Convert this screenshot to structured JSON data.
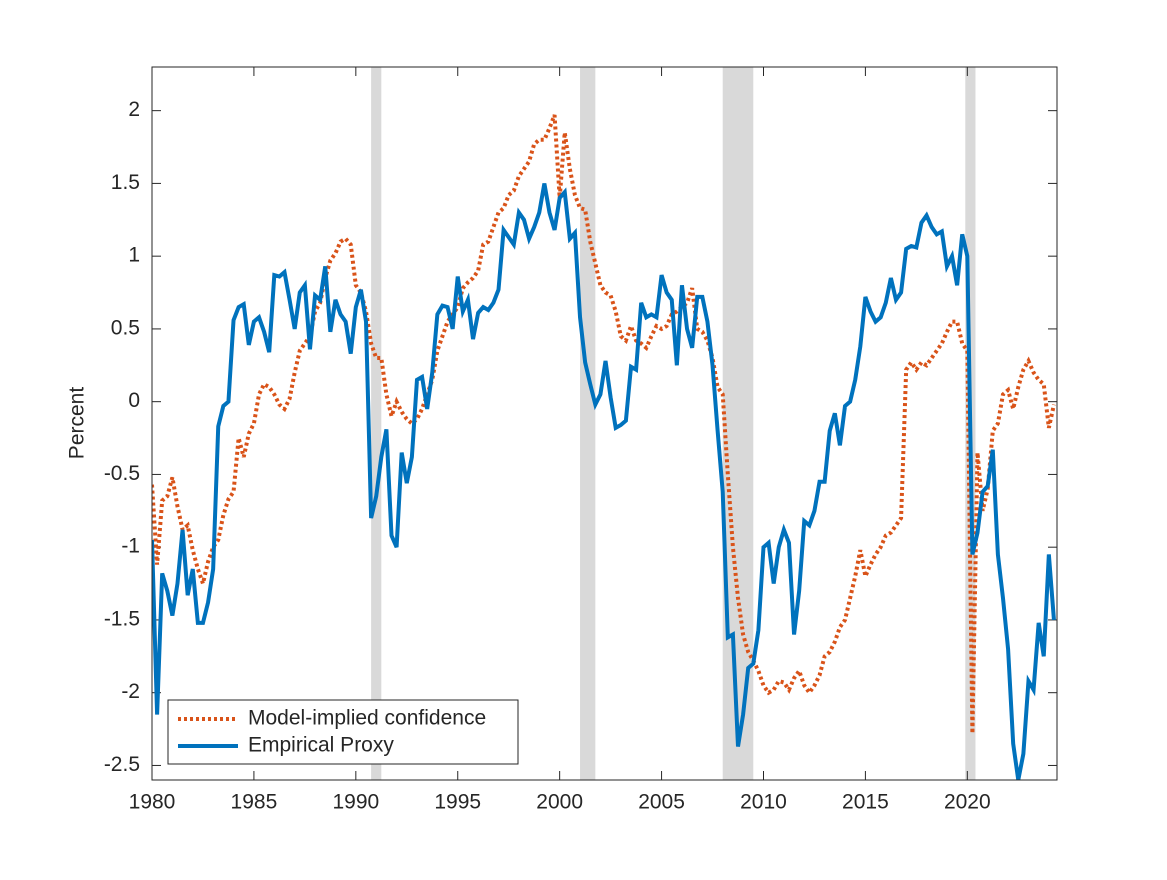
{
  "chart_data": {
    "type": "line",
    "y_label": "Percent",
    "x": [
      1980,
      1980.25,
      1980.5,
      1980.75,
      1981,
      1981.25,
      1981.5,
      1981.75,
      1982,
      1982.25,
      1982.5,
      1982.75,
      1983,
      1983.25,
      1983.5,
      1983.75,
      1984,
      1984.25,
      1984.5,
      1984.75,
      1985,
      1985.25,
      1985.5,
      1985.75,
      1986,
      1986.25,
      1986.5,
      1986.75,
      1987,
      1987.25,
      1987.5,
      1987.75,
      1988,
      1988.25,
      1988.5,
      1988.75,
      1989,
      1989.25,
      1989.5,
      1989.75,
      1990,
      1990.25,
      1990.5,
      1990.75,
      1991,
      1991.25,
      1991.5,
      1991.75,
      1992,
      1992.25,
      1992.5,
      1992.75,
      1993,
      1993.25,
      1993.5,
      1993.75,
      1994,
      1994.25,
      1994.5,
      1994.75,
      1995,
      1995.25,
      1995.5,
      1995.75,
      1996,
      1996.25,
      1996.5,
      1996.75,
      1997,
      1997.25,
      1997.5,
      1997.75,
      1998,
      1998.25,
      1998.5,
      1998.75,
      1999,
      1999.25,
      1999.5,
      1999.75,
      2000,
      2000.25,
      2000.5,
      2000.75,
      2001,
      2001.25,
      2001.5,
      2001.75,
      2002,
      2002.25,
      2002.5,
      2002.75,
      2003,
      2003.25,
      2003.5,
      2003.75,
      2004,
      2004.25,
      2004.5,
      2004.75,
      2005,
      2005.25,
      2005.5,
      2005.75,
      2006,
      2006.25,
      2006.5,
      2006.75,
      2007,
      2007.25,
      2007.5,
      2007.75,
      2008,
      2008.25,
      2008.5,
      2008.75,
      2009,
      2009.25,
      2009.5,
      2009.75,
      2010,
      2010.25,
      2010.5,
      2010.75,
      2011,
      2011.25,
      2011.5,
      2011.75,
      2012,
      2012.25,
      2012.5,
      2012.75,
      2013,
      2013.25,
      2013.5,
      2013.75,
      2014,
      2014.25,
      2014.5,
      2014.75,
      2015,
      2015.25,
      2015.5,
      2015.75,
      2016,
      2016.25,
      2016.5,
      2016.75,
      2017,
      2017.25,
      2017.5,
      2017.75,
      2018,
      2018.25,
      2018.5,
      2018.75,
      2019,
      2019.25,
      2019.5,
      2019.75,
      2020,
      2020.25,
      2020.5,
      2020.75,
      2021,
      2021.25,
      2021.5,
      2021.75,
      2022,
      2022.25,
      2022.5,
      2022.75,
      2023,
      2023.25,
      2023.5,
      2023.75,
      2024,
      2024.25
    ],
    "series": [
      {
        "name": "Model-implied confidence",
        "color": "#d95319",
        "style": "dotted",
        "values": [
          -0.57,
          -1.12,
          -0.68,
          -0.65,
          -0.52,
          -0.72,
          -0.88,
          -0.85,
          -1.02,
          -1.15,
          -1.25,
          -1.1,
          -1.0,
          -0.95,
          -0.78,
          -0.67,
          -0.62,
          -0.25,
          -0.38,
          -0.22,
          -0.15,
          0.05,
          0.12,
          0.1,
          0.05,
          -0.02,
          -0.05,
          0.02,
          0.2,
          0.35,
          0.4,
          0.45,
          0.62,
          0.68,
          0.85,
          0.97,
          1.02,
          1.1,
          1.12,
          1.08,
          0.8,
          0.75,
          0.62,
          0.4,
          0.3,
          0.3,
          0.05,
          -0.1,
          0.0,
          -0.07,
          -0.12,
          -0.15,
          -0.12,
          -0.05,
          0.05,
          0.15,
          0.35,
          0.45,
          0.55,
          0.6,
          0.65,
          0.78,
          0.82,
          0.85,
          0.9,
          1.08,
          1.1,
          1.2,
          1.3,
          1.33,
          1.42,
          1.45,
          1.55,
          1.6,
          1.65,
          1.77,
          1.8,
          1.8,
          1.88,
          1.97,
          1.4,
          1.85,
          1.6,
          1.42,
          1.33,
          1.32,
          1.1,
          0.95,
          0.8,
          0.75,
          0.73,
          0.62,
          0.45,
          0.42,
          0.52,
          0.42,
          0.4,
          0.37,
          0.45,
          0.52,
          0.5,
          0.52,
          0.6,
          0.62,
          0.65,
          0.68,
          0.78,
          0.5,
          0.48,
          0.42,
          0.3,
          0.1,
          0.05,
          -0.5,
          -1.0,
          -1.35,
          -1.6,
          -1.72,
          -1.78,
          -1.85,
          -1.95,
          -2.0,
          -1.98,
          -1.92,
          -1.93,
          -1.98,
          -1.9,
          -1.85,
          -1.95,
          -2.0,
          -1.95,
          -1.88,
          -1.75,
          -1.72,
          -1.65,
          -1.55,
          -1.5,
          -1.35,
          -1.2,
          -1.02,
          -1.2,
          -1.12,
          -1.05,
          -1.0,
          -0.92,
          -0.9,
          -0.85,
          -0.8,
          0.22,
          0.27,
          0.22,
          0.27,
          0.25,
          0.3,
          0.35,
          0.4,
          0.48,
          0.55,
          0.55,
          0.4,
          0.35,
          -2.28,
          -0.35,
          -0.75,
          -0.6,
          -0.2,
          -0.15,
          0.05,
          0.08,
          -0.05,
          0.1,
          0.22,
          0.28,
          0.2,
          0.15,
          0.12,
          -0.18,
          -0.02
        ]
      },
      {
        "name": "Empirical Proxy",
        "color": "#0072bd",
        "style": "solid",
        "values": [
          -0.95,
          -2.15,
          -1.18,
          -1.3,
          -1.47,
          -1.25,
          -0.88,
          -1.33,
          -1.15,
          -1.52,
          -1.52,
          -1.38,
          -1.15,
          -0.17,
          -0.03,
          0.0,
          0.56,
          0.65,
          0.67,
          0.39,
          0.55,
          0.58,
          0.48,
          0.34,
          0.87,
          0.86,
          0.89,
          0.7,
          0.5,
          0.75,
          0.8,
          0.36,
          0.73,
          0.7,
          0.93,
          0.48,
          0.7,
          0.6,
          0.55,
          0.33,
          0.65,
          0.77,
          0.55,
          -0.8,
          -0.65,
          -0.38,
          -0.19,
          -0.92,
          -1.0,
          -0.35,
          -0.56,
          -0.38,
          0.15,
          0.17,
          -0.05,
          0.2,
          0.6,
          0.66,
          0.65,
          0.5,
          0.86,
          0.62,
          0.7,
          0.43,
          0.61,
          0.65,
          0.63,
          0.68,
          0.77,
          1.18,
          1.13,
          1.08,
          1.3,
          1.25,
          1.12,
          1.2,
          1.3,
          1.5,
          1.3,
          1.18,
          1.4,
          1.44,
          1.12,
          1.16,
          0.58,
          0.27,
          0.12,
          -0.02,
          0.05,
          0.28,
          0.03,
          -0.18,
          -0.16,
          -0.13,
          0.24,
          0.22,
          0.68,
          0.58,
          0.6,
          0.58,
          0.87,
          0.75,
          0.7,
          0.25,
          0.8,
          0.5,
          0.37,
          0.72,
          0.72,
          0.55,
          0.25,
          -0.2,
          -0.62,
          -1.62,
          -1.6,
          -2.37,
          -2.15,
          -1.83,
          -1.8,
          -1.57,
          -1.0,
          -0.97,
          -1.25,
          -1.0,
          -0.88,
          -0.97,
          -1.6,
          -1.3,
          -0.82,
          -0.85,
          -0.75,
          -0.55,
          -0.55,
          -0.2,
          -0.08,
          -0.3,
          -0.03,
          0.0,
          0.15,
          0.38,
          0.72,
          0.62,
          0.55,
          0.58,
          0.68,
          0.85,
          0.7,
          0.75,
          1.05,
          1.07,
          1.06,
          1.23,
          1.28,
          1.2,
          1.15,
          1.17,
          0.93,
          1.0,
          0.8,
          1.15,
          1.0,
          -1.05,
          -0.9,
          -0.62,
          -0.58,
          -0.33,
          -1.05,
          -1.35,
          -1.7,
          -2.35,
          -2.6,
          -2.42,
          -1.92,
          -1.98,
          -1.52,
          -1.75,
          -1.05,
          -1.5
        ]
      }
    ],
    "recessions": [
      [
        1990.75,
        1991.25
      ],
      [
        2001.0,
        2001.75
      ],
      [
        2008.0,
        2009.5
      ],
      [
        2019.9,
        2020.4
      ]
    ],
    "recession_color": "#d9d9d9",
    "xlim": [
      1980,
      2024.4
    ],
    "ylim": [
      -2.6,
      2.3
    ],
    "xticks": [
      1980,
      1985,
      1990,
      1995,
      2000,
      2005,
      2010,
      2015,
      2020
    ],
    "yticks": [
      -2.5,
      -2,
      -1.5,
      -1,
      -0.5,
      0,
      0.5,
      1,
      1.5,
      2
    ],
    "grid": false,
    "legend": "southwest"
  }
}
